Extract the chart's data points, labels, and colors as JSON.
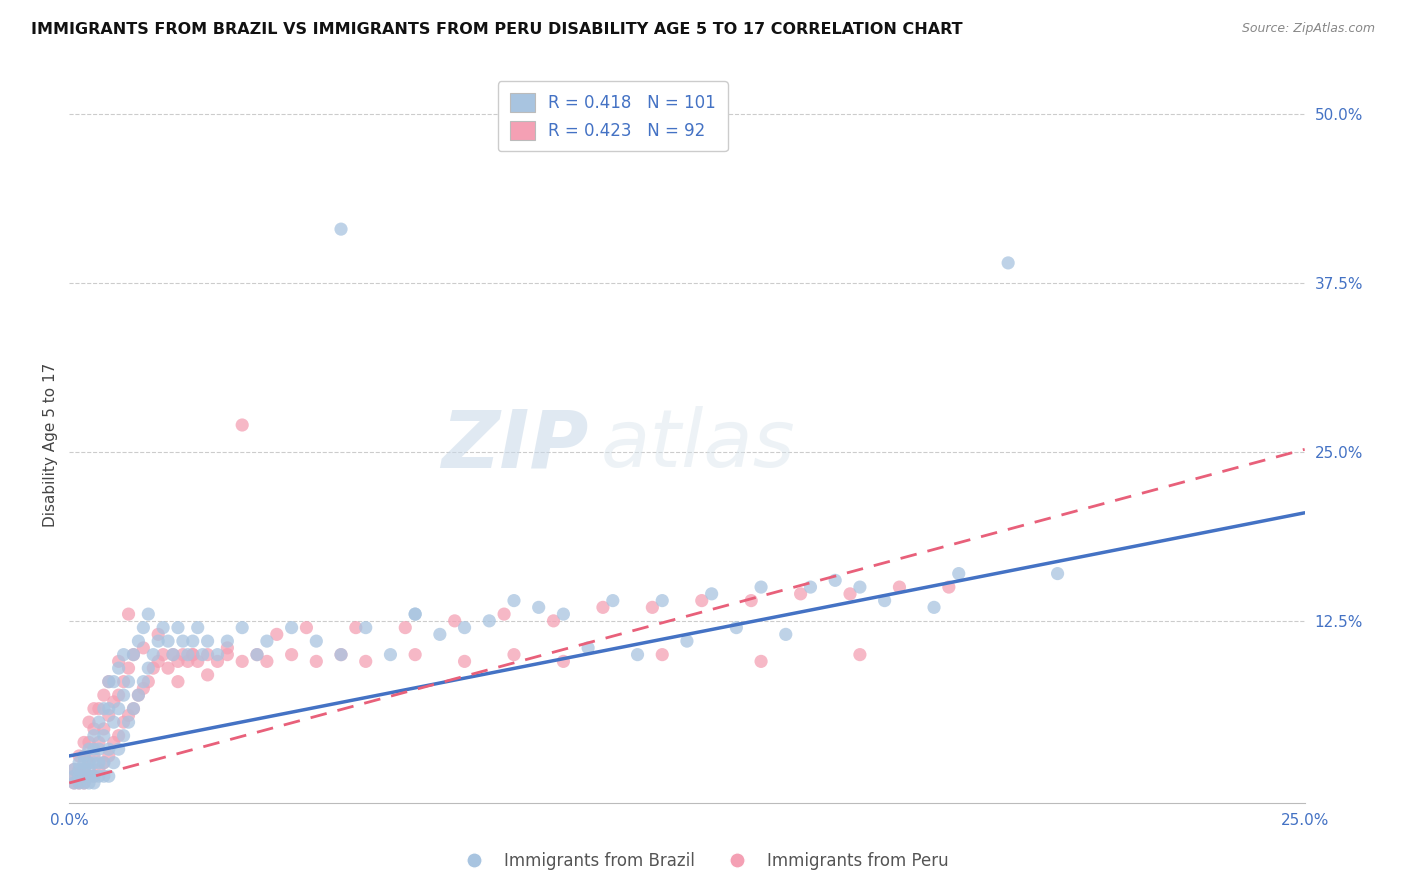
{
  "title": "IMMIGRANTS FROM BRAZIL VS IMMIGRANTS FROM PERU DISABILITY AGE 5 TO 17 CORRELATION CHART",
  "source": "Source: ZipAtlas.com",
  "ylabel": "Disability Age 5 to 17",
  "xlim": [
    0.0,
    0.25
  ],
  "ylim": [
    -0.01,
    0.52
  ],
  "xtick_labels": [
    "0.0%",
    "25.0%"
  ],
  "xtick_positions": [
    0.0,
    0.25
  ],
  "ytick_labels": [
    "12.5%",
    "25.0%",
    "37.5%",
    "50.0%"
  ],
  "ytick_positions": [
    0.125,
    0.25,
    0.375,
    0.5
  ],
  "brazil_color": "#a8c4e0",
  "peru_color": "#f4a0b4",
  "brazil_line_color": "#4472c4",
  "peru_line_color": "#e8607a",
  "brazil_R": 0.418,
  "brazil_N": 101,
  "peru_R": 0.423,
  "peru_N": 92,
  "legend_label_brazil": "Immigrants from Brazil",
  "legend_label_peru": "Immigrants from Peru",
  "background_color": "#ffffff",
  "title_fontsize": 11.5,
  "axis_label_fontsize": 11,
  "tick_fontsize": 11,
  "legend_fontsize": 12,
  "brazil_trend": [
    0.025,
    0.205
  ],
  "peru_trend": [
    0.005,
    0.252
  ],
  "brazil_scatter_x": [
    0.001,
    0.001,
    0.001,
    0.002,
    0.002,
    0.002,
    0.002,
    0.003,
    0.003,
    0.003,
    0.003,
    0.003,
    0.004,
    0.004,
    0.004,
    0.004,
    0.004,
    0.005,
    0.005,
    0.005,
    0.005,
    0.005,
    0.006,
    0.006,
    0.006,
    0.006,
    0.007,
    0.007,
    0.007,
    0.007,
    0.008,
    0.008,
    0.008,
    0.008,
    0.009,
    0.009,
    0.009,
    0.01,
    0.01,
    0.01,
    0.011,
    0.011,
    0.011,
    0.012,
    0.012,
    0.013,
    0.013,
    0.014,
    0.014,
    0.015,
    0.015,
    0.016,
    0.016,
    0.017,
    0.018,
    0.019,
    0.02,
    0.021,
    0.022,
    0.023,
    0.024,
    0.025,
    0.026,
    0.027,
    0.028,
    0.03,
    0.032,
    0.035,
    0.038,
    0.04,
    0.045,
    0.05,
    0.055,
    0.06,
    0.07,
    0.08,
    0.09,
    0.1,
    0.12,
    0.14,
    0.16,
    0.18,
    0.2,
    0.055,
    0.19,
    0.095,
    0.155,
    0.07,
    0.085,
    0.11,
    0.13,
    0.15,
    0.065,
    0.075,
    0.105,
    0.115,
    0.125,
    0.135,
    0.145,
    0.165,
    0.175
  ],
  "brazil_scatter_y": [
    0.005,
    0.01,
    0.015,
    0.005,
    0.01,
    0.015,
    0.02,
    0.005,
    0.01,
    0.015,
    0.02,
    0.025,
    0.005,
    0.01,
    0.015,
    0.02,
    0.03,
    0.005,
    0.01,
    0.02,
    0.03,
    0.04,
    0.01,
    0.02,
    0.03,
    0.05,
    0.01,
    0.02,
    0.04,
    0.06,
    0.01,
    0.03,
    0.06,
    0.08,
    0.02,
    0.05,
    0.08,
    0.03,
    0.06,
    0.09,
    0.04,
    0.07,
    0.1,
    0.05,
    0.08,
    0.06,
    0.1,
    0.07,
    0.11,
    0.08,
    0.12,
    0.09,
    0.13,
    0.1,
    0.11,
    0.12,
    0.11,
    0.1,
    0.12,
    0.11,
    0.1,
    0.11,
    0.12,
    0.1,
    0.11,
    0.1,
    0.11,
    0.12,
    0.1,
    0.11,
    0.12,
    0.11,
    0.1,
    0.12,
    0.13,
    0.12,
    0.14,
    0.13,
    0.14,
    0.15,
    0.15,
    0.16,
    0.16,
    0.415,
    0.39,
    0.135,
    0.155,
    0.13,
    0.125,
    0.14,
    0.145,
    0.15,
    0.1,
    0.115,
    0.105,
    0.1,
    0.11,
    0.12,
    0.115,
    0.14,
    0.135
  ],
  "peru_scatter_x": [
    0.001,
    0.001,
    0.001,
    0.002,
    0.002,
    0.002,
    0.002,
    0.003,
    0.003,
    0.003,
    0.003,
    0.004,
    0.004,
    0.004,
    0.004,
    0.005,
    0.005,
    0.005,
    0.005,
    0.006,
    0.006,
    0.006,
    0.007,
    0.007,
    0.007,
    0.008,
    0.008,
    0.008,
    0.009,
    0.009,
    0.01,
    0.01,
    0.01,
    0.011,
    0.011,
    0.012,
    0.012,
    0.013,
    0.013,
    0.014,
    0.015,
    0.015,
    0.016,
    0.017,
    0.018,
    0.019,
    0.02,
    0.021,
    0.022,
    0.023,
    0.024,
    0.025,
    0.026,
    0.028,
    0.03,
    0.032,
    0.035,
    0.038,
    0.04,
    0.045,
    0.05,
    0.055,
    0.06,
    0.07,
    0.08,
    0.09,
    0.1,
    0.12,
    0.14,
    0.16,
    0.035,
    0.012,
    0.018,
    0.025,
    0.032,
    0.042,
    0.048,
    0.058,
    0.068,
    0.078,
    0.088,
    0.098,
    0.108,
    0.118,
    0.128,
    0.138,
    0.148,
    0.158,
    0.168,
    0.178,
    0.022,
    0.028
  ],
  "peru_scatter_y": [
    0.005,
    0.01,
    0.015,
    0.005,
    0.01,
    0.015,
    0.025,
    0.005,
    0.015,
    0.025,
    0.035,
    0.01,
    0.02,
    0.035,
    0.05,
    0.01,
    0.025,
    0.045,
    0.06,
    0.015,
    0.035,
    0.06,
    0.02,
    0.045,
    0.07,
    0.025,
    0.055,
    0.08,
    0.035,
    0.065,
    0.04,
    0.07,
    0.095,
    0.05,
    0.08,
    0.055,
    0.09,
    0.06,
    0.1,
    0.07,
    0.075,
    0.105,
    0.08,
    0.09,
    0.095,
    0.1,
    0.09,
    0.1,
    0.095,
    0.1,
    0.095,
    0.1,
    0.095,
    0.1,
    0.095,
    0.1,
    0.095,
    0.1,
    0.095,
    0.1,
    0.095,
    0.1,
    0.095,
    0.1,
    0.095,
    0.1,
    0.095,
    0.1,
    0.095,
    0.1,
    0.27,
    0.13,
    0.115,
    0.1,
    0.105,
    0.115,
    0.12,
    0.12,
    0.12,
    0.125,
    0.13,
    0.125,
    0.135,
    0.135,
    0.14,
    0.14,
    0.145,
    0.145,
    0.15,
    0.15,
    0.08,
    0.085
  ]
}
